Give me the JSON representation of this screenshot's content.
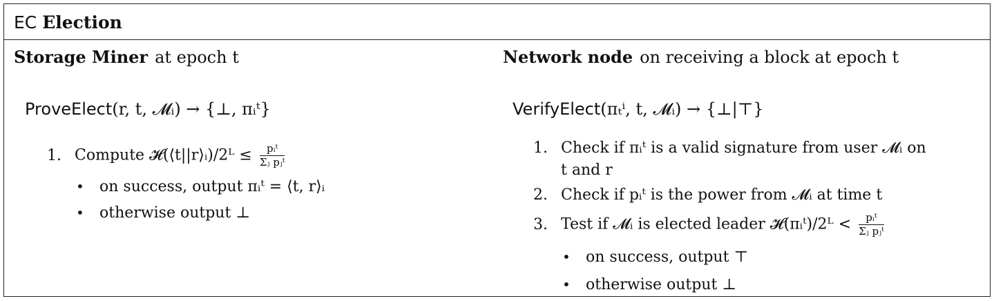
{
  "header": {
    "prefix": "EC",
    "title": "Election"
  },
  "left": {
    "heading_bold": "Storage Miner",
    "heading_rest": "at epoch t",
    "proc_name": "ProveElect",
    "proc_sig": "(r, t, 𝓜ᵢ) → {⊥, πᵢᵗ}",
    "step1_num": "1.",
    "step1_text": "Compute 𝓗(⟨t||r⟩ᵢ)/2ᴸ ≤",
    "step1_frac_num": "pᵢᵗ",
    "step1_frac_den": "Σⱼ pⱼᵗ",
    "bullet_symbol": "•",
    "bullet1": "on success, output πᵢᵗ = ⟨t, r⟩ᵢ",
    "bullet2": "otherwise output ⊥"
  },
  "right": {
    "heading_bold": "Network node",
    "heading_rest": "on receiving a block at epoch t",
    "proc_name": "VerifyElect",
    "proc_sig": "(πₜⁱ, t, 𝓜ᵢ) → {⊥|⊤}",
    "step1_num": "1.",
    "step1_text": "Check if πᵢᵗ is a valid signature from user 𝓜ᵢ on",
    "step1_cont": "t and r",
    "step2_num": "2.",
    "step2_text": "Check if pᵢᵗ is the power from 𝓜ᵢ at time t",
    "step3_num": "3.",
    "step3_text": "Test if 𝓜ᵢ is elected leader 𝓗(πᵢᵗ)/2ᴸ <",
    "step3_frac_num": "pᵢᵗ",
    "step3_frac_den": "Σⱼ pⱼᵗ",
    "bullet_symbol": "•",
    "bullet1": "on success, output ⊤",
    "bullet2": "otherwise output ⊥"
  }
}
